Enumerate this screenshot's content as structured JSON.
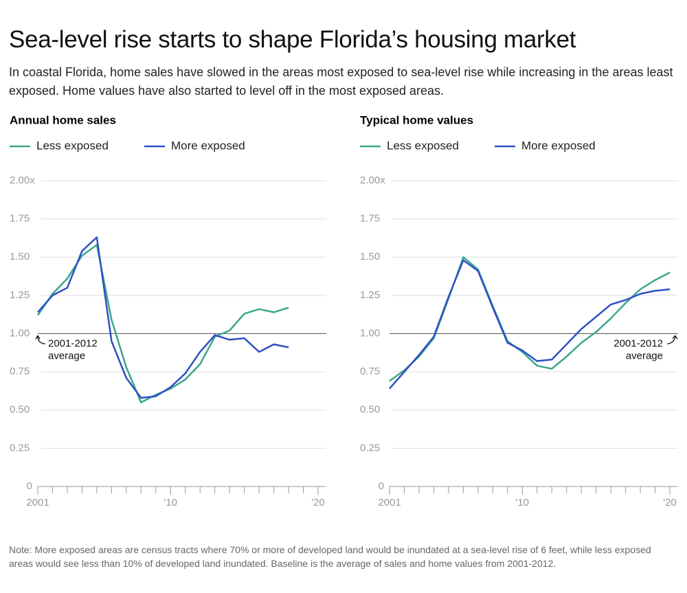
{
  "header": {
    "title": "Sea-level rise starts to shape Florida’s housing market",
    "subtitle": "In coastal Florida, home sales have slowed in the areas most exposed to sea-level rise while increasing in the areas least exposed. Home values have also started to level off in the most exposed areas."
  },
  "chart_data": [
    {
      "type": "line",
      "title": "Annual home sales",
      "x": [
        2001,
        2002,
        2003,
        2004,
        2005,
        2006,
        2007,
        2008,
        2009,
        2010,
        2011,
        2012,
        2013,
        2014,
        2015,
        2016,
        2017,
        2018
      ],
      "series": [
        {
          "name": "Less exposed",
          "color": "#3aa68c",
          "values": [
            1.12,
            1.26,
            1.36,
            1.51,
            1.58,
            1.09,
            0.78,
            0.55,
            0.6,
            0.64,
            0.7,
            0.8,
            0.98,
            1.02,
            1.13,
            1.16,
            1.14,
            1.17
          ]
        },
        {
          "name": "More exposed",
          "color": "#2e4fc4",
          "values": [
            1.14,
            1.25,
            1.3,
            1.54,
            1.63,
            0.95,
            0.71,
            0.58,
            0.59,
            0.65,
            0.74,
            0.88,
            0.99,
            0.96,
            0.97,
            0.88,
            0.93,
            0.91
          ]
        }
      ],
      "xlim": [
        2001,
        2020
      ],
      "xticks": [
        2001,
        {
          "value": 2010,
          "label": "'10"
        },
        {
          "value": 2020,
          "label": "'20"
        }
      ],
      "xminorticks": [
        2002,
        2003,
        2004,
        2005,
        2006,
        2007,
        2008,
        2009,
        2011,
        2012,
        2013,
        2014,
        2015,
        2016,
        2017,
        2018,
        2019
      ],
      "ylim": [
        0,
        2
      ],
      "yticks": [
        0,
        0.25,
        {
          "value": 0.5,
          "label": "0.50"
        },
        0.75,
        {
          "value": 1,
          "label": "1.00"
        },
        1.25,
        {
          "value": 1.5,
          "label": "1.50"
        },
        1.75,
        {
          "value": 2,
          "label": "2.00x"
        }
      ],
      "grid": true,
      "reference_line": 1,
      "annotation": [
        "2001-2012",
        "average"
      ]
    },
    {
      "type": "line",
      "title": "Typical home values",
      "x": [
        2001,
        2002,
        2003,
        2004,
        2005,
        2006,
        2007,
        2008,
        2009,
        2010,
        2011,
        2012,
        2013,
        2014,
        2015,
        2016,
        2017,
        2018,
        2019,
        2020
      ],
      "series": [
        {
          "name": "Less exposed",
          "color": "#3aa68c",
          "values": [
            0.69,
            0.76,
            0.85,
            0.97,
            1.23,
            1.5,
            1.42,
            1.18,
            0.95,
            0.88,
            0.79,
            0.77,
            0.85,
            0.94,
            1.01,
            1.1,
            1.2,
            1.29,
            1.35,
            1.4
          ]
        },
        {
          "name": "More exposed",
          "color": "#2e4fc4",
          "values": [
            0.64,
            0.75,
            0.86,
            0.98,
            1.24,
            1.48,
            1.41,
            1.17,
            0.94,
            0.89,
            0.82,
            0.83,
            0.93,
            1.03,
            1.11,
            1.19,
            1.22,
            1.26,
            1.28,
            1.29
          ]
        }
      ],
      "xlim": [
        2001,
        2020
      ],
      "xticks": [
        2001,
        {
          "value": 2010,
          "label": "'10"
        },
        {
          "value": 2020,
          "label": "'20"
        }
      ],
      "xminorticks": [
        2002,
        2003,
        2004,
        2005,
        2006,
        2007,
        2008,
        2009,
        2011,
        2012,
        2013,
        2014,
        2015,
        2016,
        2017,
        2018,
        2019
      ],
      "ylim": [
        0,
        2
      ],
      "yticks": [
        0,
        0.25,
        {
          "value": 0.5,
          "label": "0.50"
        },
        0.75,
        {
          "value": 1,
          "label": "1.00"
        },
        1.25,
        {
          "value": 1.5,
          "label": "1.50"
        },
        1.75,
        {
          "value": 2,
          "label": "2.00x"
        }
      ],
      "grid": true,
      "reference_line": 1,
      "annotation": [
        "2001-2012",
        "average"
      ]
    }
  ],
  "note": "Note: More exposed areas are census tracts where 70% or more of developed land would be inundated at a sea-level rise of 6 feet, while less exposed areas would see less than 10% of developed land inundated. Baseline is the average of sales and home values from 2001-2012."
}
